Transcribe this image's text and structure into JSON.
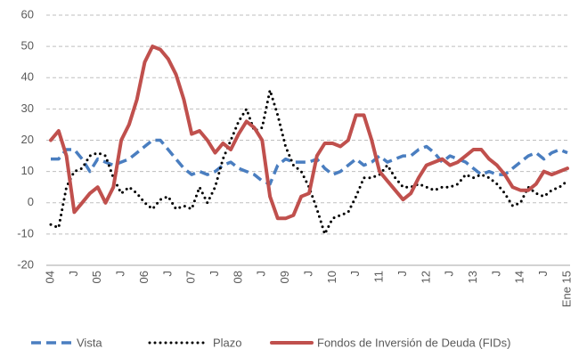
{
  "chart_data": {
    "type": "line",
    "categories": [
      "04",
      null,
      null,
      "J",
      null,
      null,
      "05",
      null,
      null,
      "J",
      null,
      null,
      "06",
      null,
      null,
      "J",
      null,
      null,
      "07",
      null,
      null,
      "J",
      null,
      null,
      "08",
      null,
      null,
      "J",
      null,
      null,
      "09",
      null,
      null,
      "J",
      null,
      null,
      "10",
      null,
      null,
      "J",
      null,
      null,
      "11",
      null,
      null,
      "J",
      null,
      null,
      "12",
      null,
      null,
      "J",
      null,
      null,
      "13",
      null,
      null,
      "J",
      null,
      null,
      "14",
      null,
      null,
      "J",
      null,
      null,
      "Ene 15"
    ],
    "series": [
      {
        "name": "Vista",
        "color": "#4a7ec0",
        "style": "dashed",
        "values": [
          14,
          14,
          17,
          17,
          14,
          10,
          14,
          13,
          12,
          13,
          14,
          16,
          18,
          20,
          20,
          17,
          14,
          11,
          9,
          10,
          9,
          10,
          12,
          13,
          11,
          10,
          9,
          7,
          6,
          12,
          14,
          13,
          13,
          13,
          14,
          11,
          9,
          10,
          12,
          14,
          12,
          13,
          15,
          13,
          14,
          15,
          15,
          17,
          18,
          16,
          13,
          15,
          14,
          13,
          11,
          9,
          10,
          9,
          9,
          11,
          13,
          15,
          16,
          14,
          16,
          17,
          16
        ]
      },
      {
        "name": "Plazo",
        "color": "#000000",
        "style": "dotted",
        "values": [
          -7,
          -8,
          5,
          10,
          11,
          15,
          16,
          15,
          8,
          3,
          5,
          3,
          0,
          -2,
          1,
          2,
          -2,
          -1,
          -2,
          5,
          0,
          5,
          14,
          20,
          26,
          30,
          23,
          24,
          36,
          28,
          18,
          12,
          10,
          5,
          -2,
          -10,
          -5,
          -4,
          -3,
          2,
          8,
          8,
          9,
          12,
          8,
          5,
          5,
          6,
          5,
          4,
          5,
          5,
          6,
          9,
          8,
          9,
          8,
          6,
          3,
          -1,
          0,
          5,
          3,
          2,
          4,
          5,
          7
        ]
      },
      {
        "name": "Fondos de Inversión de Deuda (FIDs)",
        "color": "#c0504d",
        "style": "solid",
        "values": [
          20,
          23,
          15,
          -3,
          0,
          3,
          5,
          0,
          5,
          20,
          25,
          33,
          45,
          50,
          49,
          46,
          41,
          33,
          22,
          23,
          20,
          16,
          19,
          17,
          22,
          26,
          24,
          20,
          2,
          -5,
          -5,
          -4,
          2,
          3,
          15,
          19,
          19,
          18,
          20,
          28,
          28,
          20,
          10,
          7,
          4,
          1,
          3,
          8,
          12,
          13,
          14,
          12,
          13,
          15,
          17,
          17,
          14,
          12,
          9,
          5,
          4,
          4,
          6,
          10,
          9,
          10,
          11
        ]
      }
    ],
    "ylim": [
      -20,
      60
    ],
    "yticks": [
      -20,
      -10,
      0,
      10,
      20,
      30,
      40,
      50,
      60
    ],
    "grid": true
  }
}
